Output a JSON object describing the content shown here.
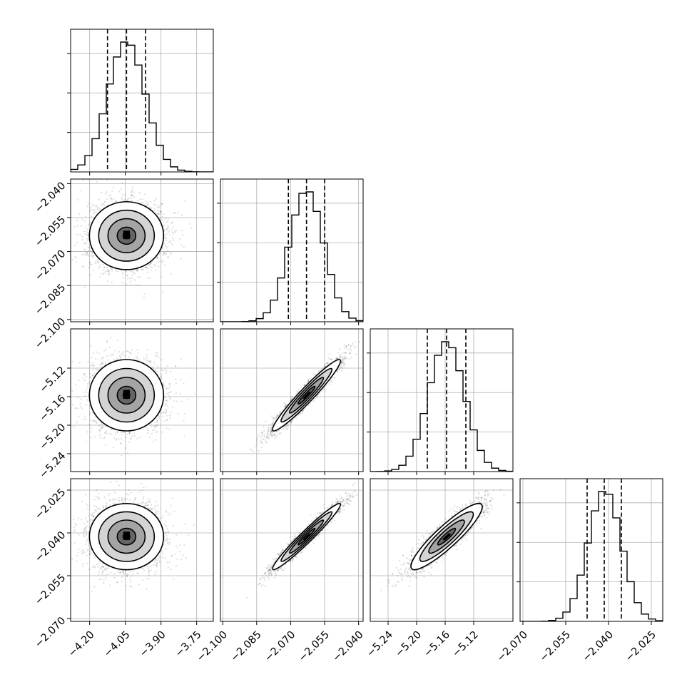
{
  "chart_data": {
    "type": "corner",
    "parameters": [
      {
        "range": [
          -4.28,
          -3.68
        ],
        "ticks": [
          -4.2,
          -4.05,
          -3.9,
          -3.75
        ],
        "tick_labels": [
          "−4.20",
          "−4.05",
          "−3.90",
          "−3.75"
        ],
        "quantiles": [
          -4.125,
          -4.045,
          -3.965
        ],
        "mean": -4.045,
        "sd": 0.078
      },
      {
        "range": [
          -2.101,
          -2.038
        ],
        "ticks": [
          -2.1,
          -2.085,
          -2.07,
          -2.055,
          -2.04
        ],
        "tick_labels": [
          "−2.100",
          "−2.085",
          "−2.070",
          "−2.055",
          "−2.040"
        ],
        "quantiles": [
          -2.071,
          -2.063,
          -2.055
        ],
        "mean": -2.063,
        "sd": 0.0075
      },
      {
        "range": [
          -5.265,
          -5.065
        ],
        "ticks": [
          -5.24,
          -5.2,
          -5.16,
          -5.12
        ],
        "tick_labels": [
          "−5.24",
          "−5.20",
          "−5.16",
          "−5.12"
        ],
        "quantiles": [
          -5.185,
          -5.158,
          -5.131
        ],
        "mean": -5.158,
        "sd": 0.025
      },
      {
        "range": [
          -2.071,
          -2.021
        ],
        "ticks": [
          -2.07,
          -2.055,
          -2.04,
          -2.025
        ],
        "tick_labels": [
          "−2.070",
          "−2.055",
          "−2.040",
          "−2.025"
        ],
        "quantiles": [
          -2.0475,
          -2.0415,
          -2.0355
        ],
        "mean": -2.0413,
        "sd": 0.0058
      }
    ],
    "correlations": {
      "1-0": 0.0,
      "2-0": 0.0,
      "2-1": 0.96,
      "3-0": 0.0,
      "3-1": 0.97,
      "3-2": 0.9
    },
    "histogram_bins": 20,
    "contour_levels_sigma": [
      0.5,
      1.0,
      1.5,
      2.0
    ],
    "grid": true,
    "colors": {
      "line": "#000000",
      "grid": "#b0b0b0",
      "points": "#000000"
    }
  }
}
